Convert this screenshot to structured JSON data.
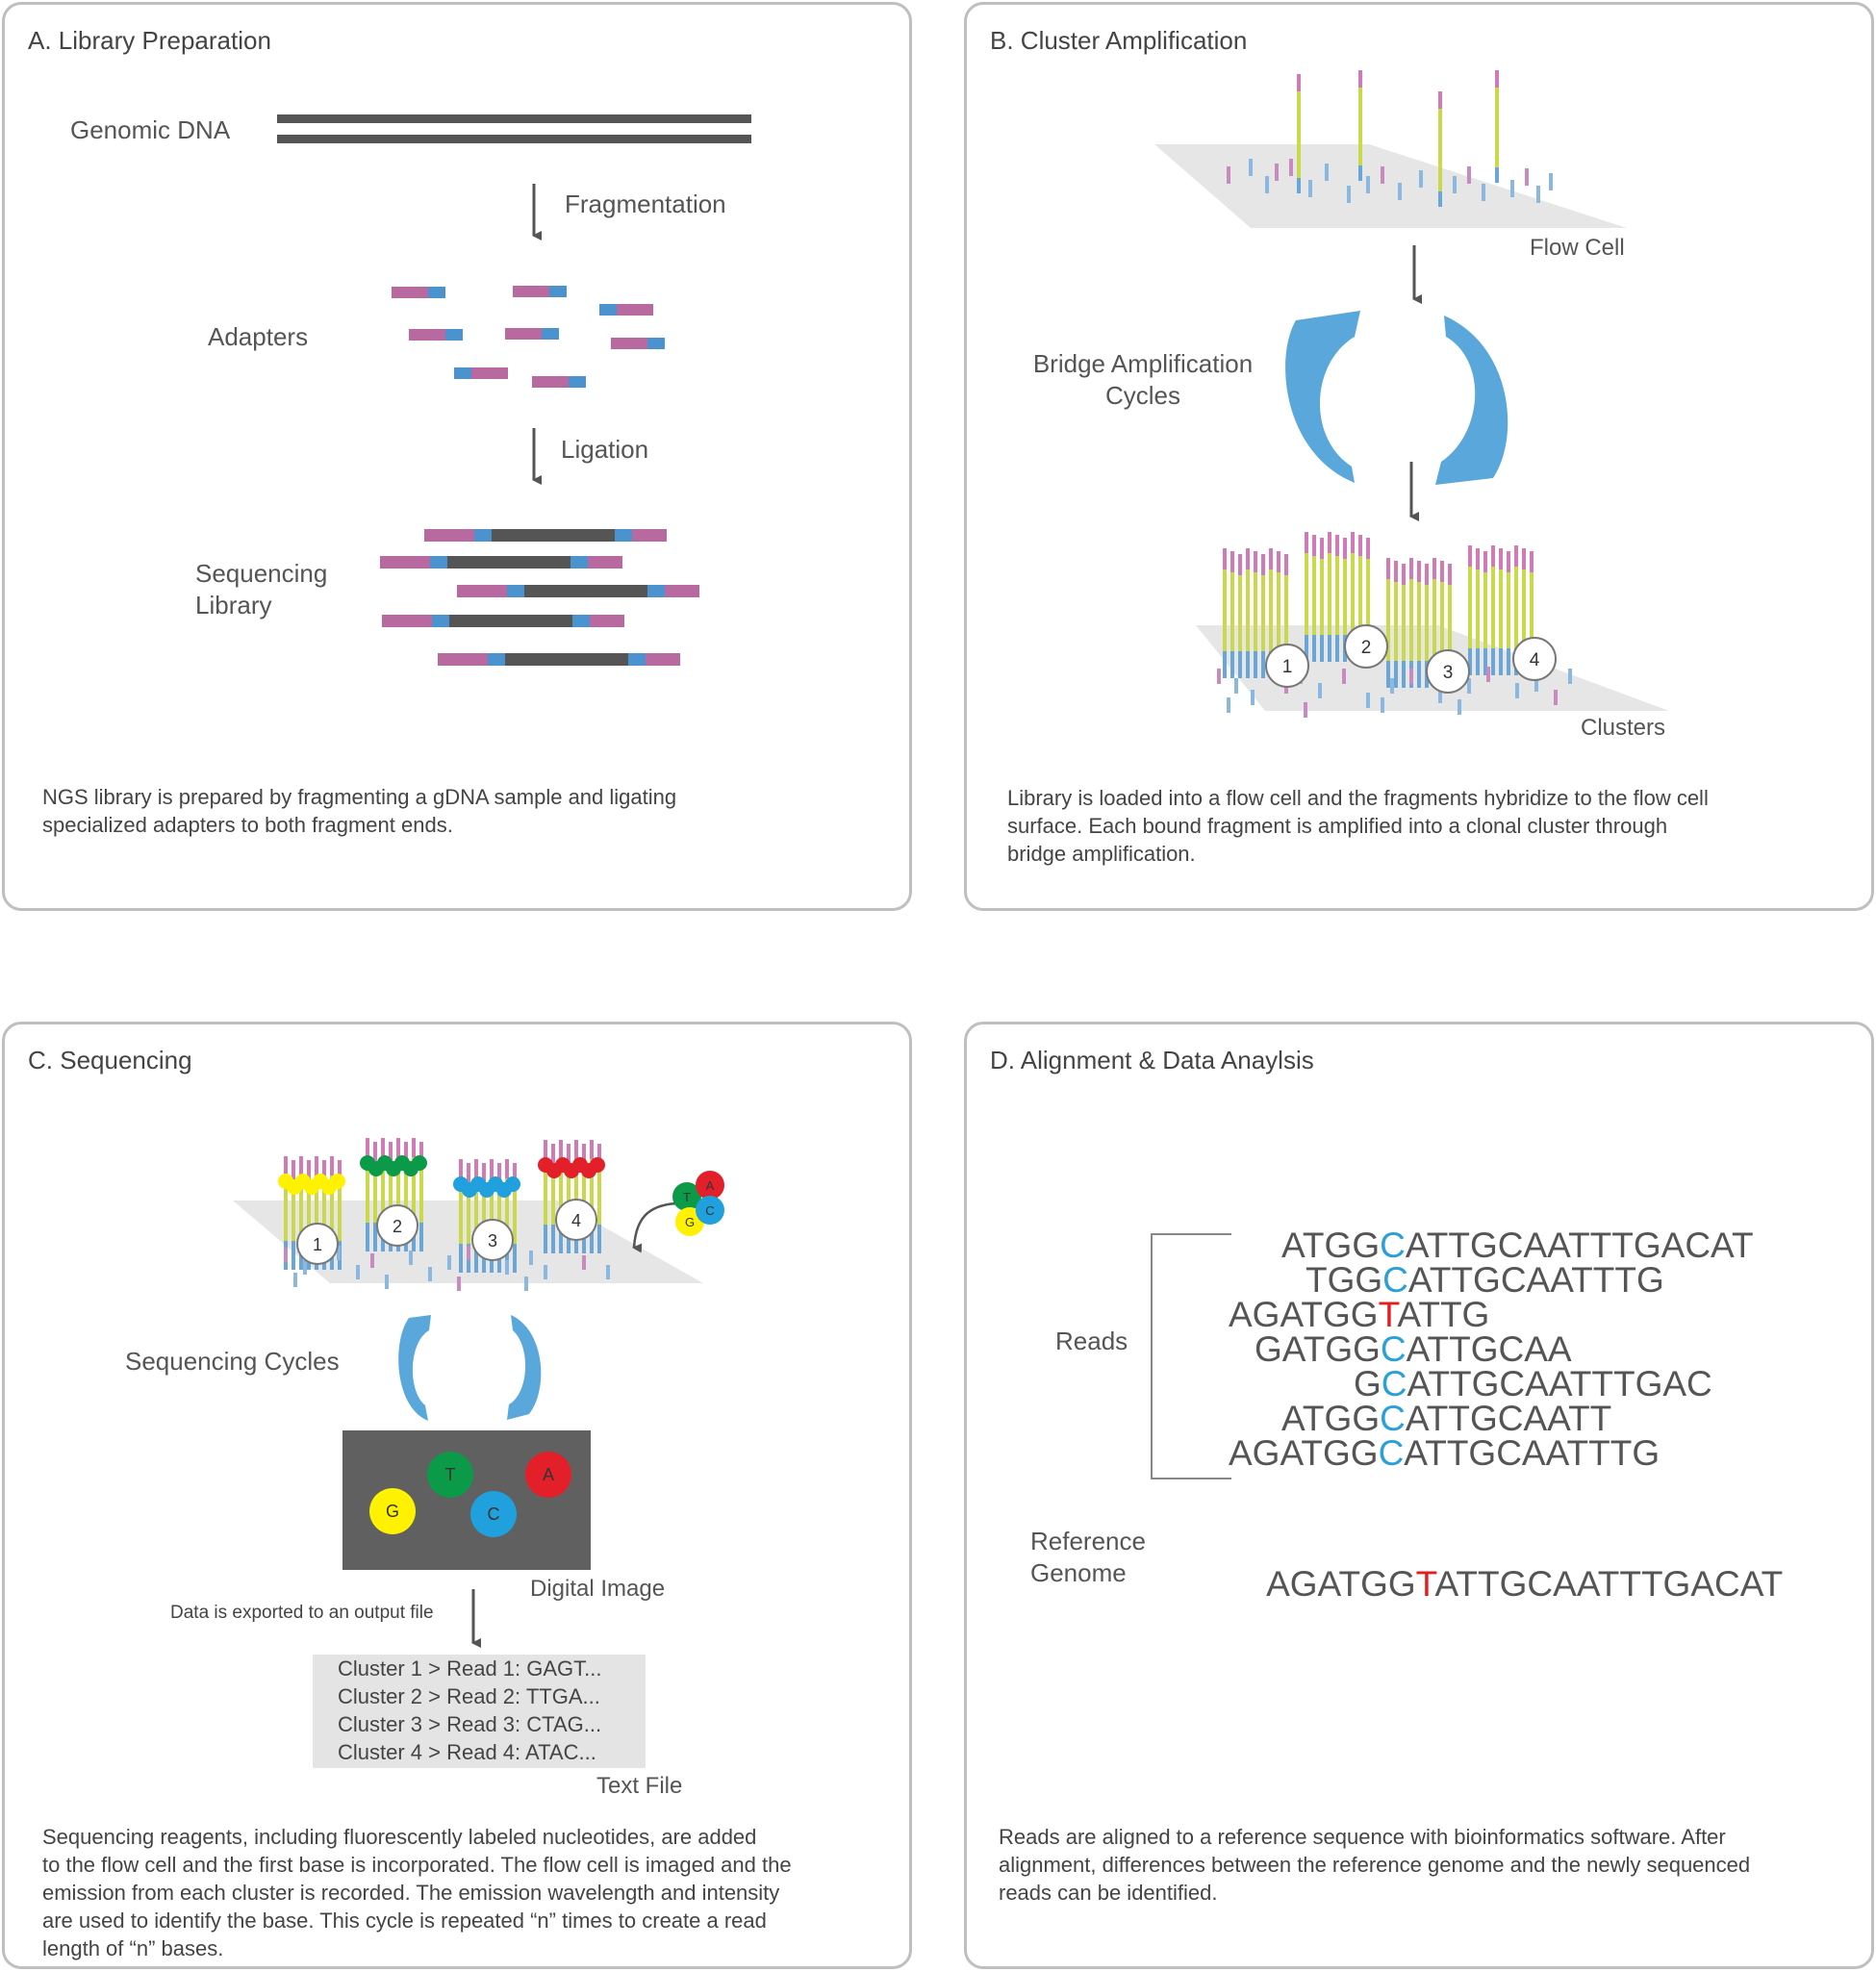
{
  "colors": {
    "magenta": "#b86aa0",
    "blue": "#4b93cf",
    "dark": "#555555",
    "arrow": "#5aa7dc",
    "yellow": "#fff200",
    "green": "#0a9a48",
    "cyan": "#20a0dc",
    "red": "#e3202a",
    "highlight": "#2aa0d6",
    "mutation": "#e02020"
  },
  "panelA": {
    "title": "A. Library Preparation",
    "genomic_dna": "Genomic DNA",
    "fragmentation": "Fragmentation",
    "adapters": "Adapters",
    "ligation": "Ligation",
    "seq_library_1": "Sequencing",
    "seq_library_2": "Library",
    "caption": [
      "NGS library is prepared by fragmenting a gDNA sample and ligating",
      "specialized adapters to both fragment ends."
    ]
  },
  "panelB": {
    "title": "B. Cluster Amplification",
    "flow_cell": "Flow Cell",
    "bridge_1": "Bridge Amplification",
    "bridge_2": "Cycles",
    "clusters": "Clusters",
    "cluster_numbers": [
      "1",
      "2",
      "3",
      "4"
    ],
    "caption": [
      "Library is loaded into a flow cell and the fragments hybridize to the flow cell",
      "surface. Each bound fragment is amplified into a clonal cluster through",
      "bridge amplification."
    ]
  },
  "panelC": {
    "title": "C. Sequencing",
    "cluster_numbers": [
      "1",
      "2",
      "3",
      "4"
    ],
    "nucleotides": [
      "T",
      "A",
      "G",
      "C"
    ],
    "sequencing_cycles": "Sequencing Cycles",
    "digital_image": "Digital Image",
    "image_bases": [
      "G",
      "T",
      "C",
      "A"
    ],
    "export_note": "Data is exported to an output file",
    "text_file_lines": [
      "Cluster 1 > Read 1: GAGT...",
      "Cluster 2 > Read 2: TTGA...",
      "Cluster 3 > Read 3: CTAG...",
      "Cluster 4 > Read 4: ATAC..."
    ],
    "text_file": "Text File",
    "caption": [
      "Sequencing reagents, including fluorescently labeled nucleotides, are added",
      "to the flow cell and the first base is incorporated. The flow cell is imaged and the",
      "emission from each cluster is recorded. The emission wavelength and intensity",
      "are used to identify the base. This cycle is repeated “n” times to create a read",
      "length of “n” bases."
    ]
  },
  "panelD": {
    "title": "D. Alignment & Data Anaylsis",
    "reads_label": "Reads",
    "reads": [
      {
        "pre": "ATGG",
        "hl": "C",
        "post": "ATTGCAATTTGACAT"
      },
      {
        "pre": "TGG",
        "hl": "C",
        "post": "ATTGCAATTTG"
      },
      {
        "pre": "AGATGG",
        "mut": "T",
        "post": "ATTG"
      },
      {
        "pre": "GATGG",
        "hl": "C",
        "post": "ATTGCAA"
      },
      {
        "pre": "G",
        "hl": "C",
        "post": "ATTGCAATTTGAC"
      },
      {
        "pre": "ATGG",
        "hl": "C",
        "post": "ATTGCAATT"
      },
      {
        "pre": "AGATGG",
        "hl": "C",
        "post": "ATTGCAATTTG"
      }
    ],
    "reference_1": "Reference",
    "reference_2": "Genome",
    "reference": {
      "pre": "AGATGG",
      "mut": "T",
      "post": "ATTGCAATTTGACAT"
    },
    "caption": [
      "Reads are aligned to a reference sequence with bioinformatics software. After",
      "alignment, differences between the reference genome and the newly sequenced",
      "reads can be identified."
    ]
  }
}
